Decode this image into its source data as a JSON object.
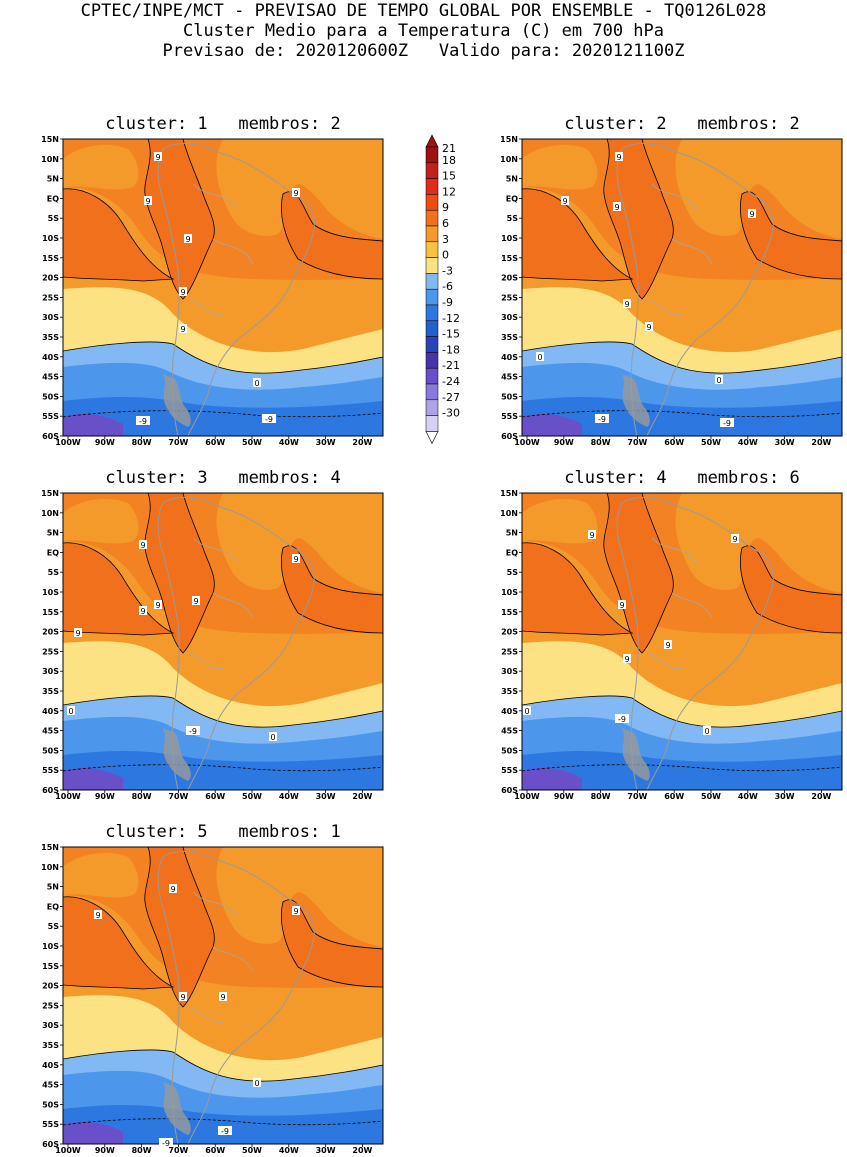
{
  "header": {
    "line1": "CPTEC/INPE/MCT - PREVISAO DE TEMPO GLOBAL POR ENSEMBLE - TQ0126L028",
    "line2": "Cluster Medio para a Temperatura (C) em 700 hPa",
    "line3": "Previsao de: 2020120600Z   Valido para: 2020121100Z"
  },
  "lat_labels": [
    "15N",
    "10N",
    "5N",
    "EQ",
    "5S",
    "10S",
    "15S",
    "20S",
    "25S",
    "30S",
    "35S",
    "40S",
    "45S",
    "50S",
    "55S",
    "60S"
  ],
  "lon_labels": [
    "100W",
    "90W",
    "80W",
    "70W",
    "60W",
    "50W",
    "40W",
    "30W",
    "20W"
  ],
  "colorbar": {
    "labels": [
      "21",
      "18",
      "15",
      "12",
      "9",
      "6",
      "3",
      "0",
      "-3",
      "-6",
      "-9",
      "-12",
      "-15",
      "-18",
      "-21",
      "-24",
      "-27",
      "-30"
    ],
    "colors": [
      "#a01010",
      "#c0201c",
      "#e02a1c",
      "#f04a10",
      "#f0701c",
      "#f49a2a",
      "#fac040",
      "#fce282",
      "#82b8f4",
      "#4c96ec",
      "#2c78e0",
      "#2460cc",
      "#2a44b8",
      "#4634a8",
      "#6a50c8",
      "#8a78dc",
      "#b0a2e8",
      "#d8d0f4"
    ]
  },
  "panels": [
    {
      "title": "cluster: 1   membros: 2",
      "labels": [
        "9",
        "9",
        "9",
        "9",
        "9",
        "9",
        "0",
        "-9",
        "-9"
      ]
    },
    {
      "title": "cluster: 2   membros: 2",
      "labels": [
        "9",
        "9",
        "9",
        "9",
        "9",
        "9",
        "0",
        "0",
        "-9",
        "-9"
      ]
    },
    {
      "title": "cluster: 3   membros: 4",
      "labels": [
        "9",
        "9",
        "9",
        "9",
        "9",
        "9",
        "0",
        "0",
        "-9"
      ]
    },
    {
      "title": "cluster: 4   membros: 6",
      "labels": [
        "9",
        "9",
        "9",
        "9",
        "9",
        "0",
        "0",
        "-9"
      ]
    },
    {
      "title": "cluster: 5   membros: 1",
      "labels": [
        "9",
        "9",
        "9",
        "9",
        "9",
        "0",
        "-9",
        "-9"
      ]
    }
  ]
}
